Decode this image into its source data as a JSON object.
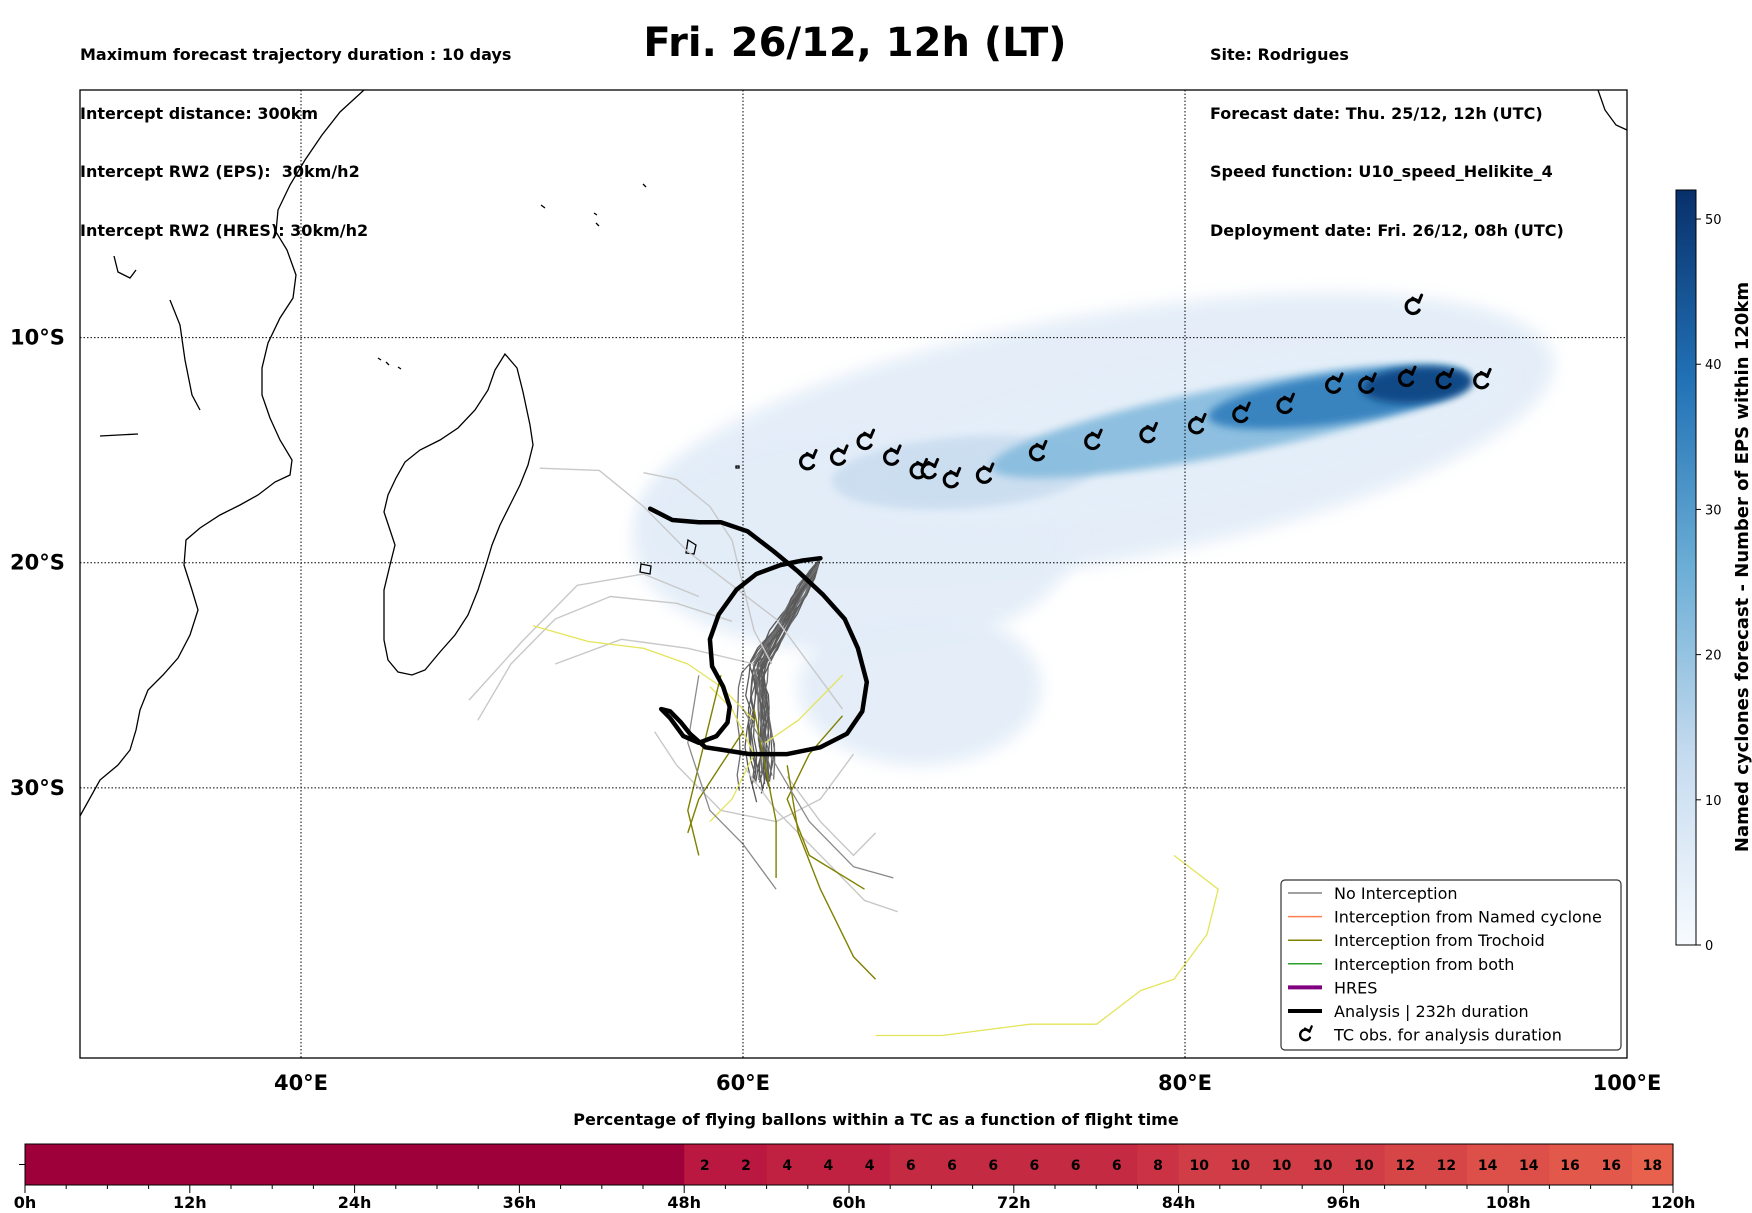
{
  "header": {
    "title": "Fri. 26/12, 12h (LT)",
    "left_lines": [
      "Maximum forecast trajectory duration : 10 days",
      "Intercept distance: 300km",
      "Intercept RW2 (EPS):  30km/h2",
      "Intercept RW2 (HRES): 30km/h2"
    ],
    "right_lines": [
      "Site: Rodrigues",
      "Forecast date: Thu. 25/12, 12h (UTC)",
      "Speed function: U10_speed_Helikite_4",
      "Deployment date: Fri. 26/12, 08h (UTC)"
    ]
  },
  "colors": {
    "no_interception": "#808080",
    "named_cyclone": "#ff7f50",
    "trochoid": "#808000",
    "both": "#2ca02c",
    "hres": "#800080",
    "analysis": "#000000",
    "density_low": "#e3edf8",
    "density_high": "#08306b"
  },
  "chart_data": [
    {
      "type": "map",
      "xlim": [
        30,
        100
      ],
      "ylim": [
        -42,
        1
      ],
      "x_ticks": [
        40,
        60,
        80,
        100
      ],
      "x_tick_labels": [
        "40°E",
        "60°E",
        "80°E",
        "100°E"
      ],
      "y_ticks": [
        -10,
        -20,
        -30
      ],
      "y_tick_labels": [
        "10°S",
        "20°S",
        "30°S"
      ],
      "grid": true,
      "legend_position": "lower-right",
      "legend": [
        {
          "label": "No Interception",
          "color": "#808080",
          "style": "thin"
        },
        {
          "label": "Interception from Named cyclone",
          "color": "#ff7f50",
          "style": "thin"
        },
        {
          "label": "Interception from Trochoid",
          "color": "#808000",
          "style": "thin"
        },
        {
          "label": "Interception from both",
          "color": "#2ca02c",
          "style": "thin"
        },
        {
          "label": "HRES",
          "color": "#800080",
          "style": "thick"
        },
        {
          "label": "Analysis | 232h duration",
          "color": "#000000",
          "style": "thick"
        },
        {
          "label": "TC obs. for analysis duration",
          "color": "#000000",
          "style": "marker"
        }
      ],
      "analysis_track": [
        [
          55.8,
          -17.6
        ],
        [
          56.8,
          -18.1
        ],
        [
          58,
          -18.2
        ],
        [
          59,
          -18.2
        ],
        [
          60.2,
          -18.6
        ],
        [
          61.4,
          -19.5
        ],
        [
          62.5,
          -20.4
        ],
        [
          63.6,
          -21.4
        ],
        [
          64.6,
          -22.5
        ],
        [
          65.2,
          -23.8
        ],
        [
          65.6,
          -25.3
        ],
        [
          65.4,
          -26.6
        ],
        [
          64.7,
          -27.6
        ],
        [
          63.5,
          -28.2
        ],
        [
          62,
          -28.5
        ],
        [
          60.3,
          -28.5
        ],
        [
          59,
          -28.3
        ],
        [
          58.3,
          -28.2
        ],
        [
          57.6,
          -27.6
        ],
        [
          57.2,
          -27.1
        ],
        [
          56.7,
          -26.6
        ],
        [
          56.3,
          -26.5
        ],
        [
          56.7,
          -26.9
        ],
        [
          57.3,
          -27.7
        ],
        [
          58,
          -28
        ],
        [
          58.8,
          -27.7
        ],
        [
          59.3,
          -27.1
        ],
        [
          59.4,
          -26.4
        ],
        [
          59.1,
          -25.5
        ],
        [
          58.6,
          -24.6
        ],
        [
          58.5,
          -23.4
        ],
        [
          58.9,
          -22.3
        ],
        [
          59.7,
          -21.2
        ],
        [
          60.6,
          -20.5
        ],
        [
          61.7,
          -20.1
        ],
        [
          62.7,
          -19.9
        ],
        [
          63.5,
          -19.8
        ]
      ],
      "tc_obs": [
        [
          62.9,
          -15.5
        ],
        [
          64.3,
          -15.3
        ],
        [
          65.5,
          -14.6
        ],
        [
          66.7,
          -15.3
        ],
        [
          67.9,
          -15.9
        ],
        [
          68.4,
          -15.9
        ],
        [
          69.4,
          -16.3
        ],
        [
          70.9,
          -16.1
        ],
        [
          73.3,
          -15.1
        ],
        [
          75.8,
          -14.6
        ],
        [
          78.3,
          -14.3
        ],
        [
          80.5,
          -13.9
        ],
        [
          82.5,
          -13.4
        ],
        [
          84.5,
          -13
        ],
        [
          86.7,
          -12.1
        ],
        [
          88.2,
          -12.1
        ],
        [
          90,
          -11.8
        ],
        [
          91.7,
          -11.9
        ],
        [
          93.4,
          -11.9
        ],
        [
          90.3,
          -8.6
        ]
      ],
      "density_blobs": [
        {
          "cx": 76,
          "cy": -14.5,
          "rx": 21,
          "ry": 5.5,
          "rot": -10,
          "level": 1
        },
        {
          "cx": 65,
          "cy": -19,
          "rx": 10,
          "ry": 5,
          "rot": 0,
          "level": 1
        },
        {
          "cx": 68,
          "cy": -25.5,
          "rx": 5.5,
          "ry": 3.5,
          "rot": 0,
          "level": 1
        },
        {
          "cx": 80,
          "cy": -14.3,
          "rx": 15,
          "ry": 3,
          "rot": -10,
          "level": 5
        },
        {
          "cx": 70,
          "cy": -16,
          "rx": 6,
          "ry": 1.6,
          "rot": -4,
          "level": 12
        },
        {
          "cx": 82,
          "cy": -13.7,
          "rx": 11,
          "ry": 1.5,
          "rot": -11,
          "level": 22
        },
        {
          "cx": 87,
          "cy": -12.7,
          "rx": 6,
          "ry": 1.1,
          "rot": -8,
          "level": 36
        },
        {
          "cx": 90.5,
          "cy": -12.1,
          "rx": 2.5,
          "ry": 0.8,
          "rot": -4,
          "level": 48
        }
      ],
      "colorbar": {
        "label": "Named cyclones forecast - Number of EPS within 120km",
        "min": 0,
        "max": 52,
        "ticks": [
          0,
          10,
          20,
          30,
          40,
          50
        ],
        "tick_labels": [
          "0",
          "10",
          "20",
          "30",
          "40",
          "50"
        ]
      }
    },
    {
      "type": "heatmap",
      "title": "Percentage of flying ballons within a TC as a function of flight time",
      "x_tick_labels": [
        "0h",
        "12h",
        "24h",
        "36h",
        "48h",
        "60h",
        "72h",
        "84h",
        "96h",
        "108h",
        "120h"
      ],
      "bin_hours": 3,
      "values": [
        0,
        0,
        0,
        0,
        0,
        0,
        0,
        0,
        0,
        0,
        0,
        0,
        0,
        0,
        0,
        0,
        2,
        2,
        4,
        4,
        4,
        6,
        6,
        6,
        6,
        6,
        6,
        8,
        10,
        10,
        10,
        10,
        10,
        12,
        12,
        14,
        14,
        16,
        16,
        18
      ]
    }
  ]
}
